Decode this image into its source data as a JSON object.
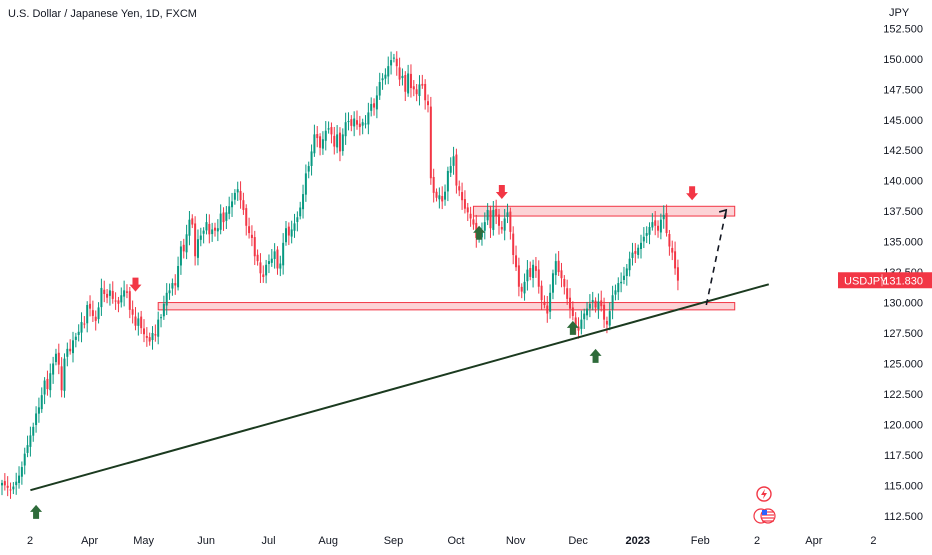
{
  "chart_data": {
    "type": "candlestick",
    "title": "U.S. Dollar / Japanese Yen, 1D, FXCM",
    "currency_label": "JPY",
    "symbol": "USDJPY",
    "last_price": "131.830",
    "ylim": [
      111.5,
      154.5
    ],
    "y_ticks": [
      "152.500",
      "150.000",
      "147.500",
      "145.000",
      "142.500",
      "140.000",
      "137.500",
      "135.000",
      "132.500",
      "130.000",
      "127.500",
      "125.000",
      "122.500",
      "120.000",
      "117.500",
      "115.000",
      "112.500"
    ],
    "x_ticks": [
      {
        "label": "2",
        "i": 0,
        "bold": false
      },
      {
        "label": "Apr",
        "i": 21,
        "bold": false
      },
      {
        "label": "May",
        "i": 40,
        "bold": false
      },
      {
        "label": "Jun",
        "i": 62,
        "bold": false
      },
      {
        "label": "Jul",
        "i": 84,
        "bold": false
      },
      {
        "label": "Aug",
        "i": 105,
        "bold": false
      },
      {
        "label": "Sep",
        "i": 128,
        "bold": false
      },
      {
        "label": "Oct",
        "i": 150,
        "bold": false
      },
      {
        "label": "Nov",
        "i": 171,
        "bold": false
      },
      {
        "label": "Dec",
        "i": 193,
        "bold": false
      },
      {
        "label": "2023",
        "i": 214,
        "bold": true
      },
      {
        "label": "Feb",
        "i": 236,
        "bold": false
      },
      {
        "label": "2",
        "i": 256,
        "bold": false
      },
      {
        "label": "Apr",
        "i": 276,
        "bold": false
      },
      {
        "label": "2",
        "i": 297,
        "bold": false
      }
    ],
    "closes": [
      115.2,
      115.0,
      114.8,
      114.6,
      114.9,
      115.3,
      115.8,
      116.5,
      117.6,
      118.3,
      119.1,
      119.8,
      120.9,
      121.4,
      122.4,
      123.6,
      122.9,
      124.2,
      125.0,
      125.8,
      124.9,
      122.8,
      125.4,
      126.2,
      126.0,
      126.9,
      127.2,
      127.6,
      128.4,
      128.2,
      129.8,
      129.5,
      128.9,
      128.5,
      129.6,
      131.2,
      130.7,
      130.4,
      131.0,
      130.3,
      130.1,
      129.9,
      130.6,
      131.0,
      130.8,
      129.4,
      129.0,
      128.1,
      128.7,
      127.9,
      127.4,
      127.1,
      126.8,
      127.5,
      127.3,
      128.6,
      128.8,
      129.9,
      130.8,
      131.0,
      131.6,
      131.4,
      133.0,
      134.6,
      134.2,
      135.6,
      136.8,
      136.4,
      133.8,
      135.2,
      135.5,
      135.9,
      136.6,
      135.6,
      136.0,
      135.9,
      136.1,
      137.3,
      136.6,
      137.4,
      137.9,
      138.3,
      139.0,
      139.3,
      138.4,
      137.6,
      136.3,
      135.7,
      135.3,
      133.8,
      133.4,
      132.4,
      132.1,
      133.1,
      133.4,
      133.6,
      134.2,
      132.8,
      133.2,
      134.9,
      136.1,
      135.5,
      136.0,
      136.5,
      137.0,
      137.8,
      138.9,
      140.6,
      141.2,
      142.4,
      143.8,
      143.5,
      142.7,
      143.4,
      144.1,
      144.3,
      143.8,
      142.8,
      143.8,
      142.4,
      143.8,
      144.8,
      144.9,
      144.5,
      145.1,
      144.6,
      144.4,
      144.8,
      144.7,
      145.6,
      146.3,
      146.0,
      147.0,
      148.1,
      148.4,
      148.7,
      149.4,
      149.9,
      150.1,
      149.4,
      148.3,
      148.6,
      147.3,
      148.8,
      147.6,
      147.5,
      147.1,
      147.9,
      147.8,
      146.6,
      146.2,
      140.2,
      139.0,
      138.6,
      138.8,
      138.3,
      139.1,
      140.8,
      141.2,
      142.0,
      139.6,
      139.2,
      138.4,
      137.7,
      137.4,
      136.9,
      136.4,
      135.3,
      135.5,
      135.9,
      136.6,
      137.6,
      136.1,
      137.6,
      137.1,
      136.3,
      136.0,
      136.9,
      137.4,
      135.8,
      133.9,
      132.9,
      131.3,
      130.9,
      131.7,
      132.7,
      132.1,
      133.1,
      132.6,
      131.3,
      130.2,
      129.8,
      129.1,
      130.8,
      132.4,
      133.4,
      132.5,
      132.0,
      131.3,
      130.3,
      129.5,
      128.9,
      128.1,
      127.7,
      128.6,
      129.1,
      129.5,
      129.9,
      130.2,
      129.6,
      130.1,
      129.7,
      128.6,
      128.2,
      129.3,
      130.6,
      131.0,
      131.6,
      131.7,
      132.2,
      132.8,
      133.6,
      134.1,
      134.0,
      134.5,
      134.9,
      135.4,
      135.7,
      136.2,
      136.6,
      136.3,
      135.9,
      136.8,
      137.2,
      135.7,
      134.6,
      134.1,
      132.8,
      131.8
    ]
  },
  "annotations": {
    "resistance_zone": {
      "lo": 137.1,
      "hi": 137.9,
      "from_i": 166,
      "to_i": 258
    },
    "support_zone": {
      "lo": 129.4,
      "hi": 130.0,
      "from_i": 55,
      "to_i": 258
    },
    "trendline": {
      "i1": 10,
      "p1": 114.6,
      "i2": 270,
      "p2": 131.5
    },
    "projection": {
      "i1": 248,
      "p1": 129.8,
      "i2": 255,
      "p2": 137.6
    },
    "down_arrows": [
      {
        "i": 47,
        "p": 130.9
      },
      {
        "i": 176,
        "p": 138.5
      },
      {
        "i": 243,
        "p": 138.4
      }
    ],
    "up_arrows": [
      {
        "i": 12,
        "p": 113.4
      },
      {
        "i": 168,
        "p": 136.3
      },
      {
        "i": 201,
        "p": 128.5
      },
      {
        "i": 209,
        "p": 126.2
      }
    ]
  },
  "colors": {
    "bull": "#089981",
    "bear": "#f23645",
    "label_bg": "#f23645",
    "zone_fill": "rgba(242,54,69,0.22)",
    "zone_stroke": "#f23645",
    "up_arrow": "#2e6b3a",
    "down_arrow": "#f23645",
    "trendline": "#1b3a1f",
    "axis_text": "#131722"
  },
  "icons": [
    "lightning-icon",
    "us-flag-icon"
  ]
}
